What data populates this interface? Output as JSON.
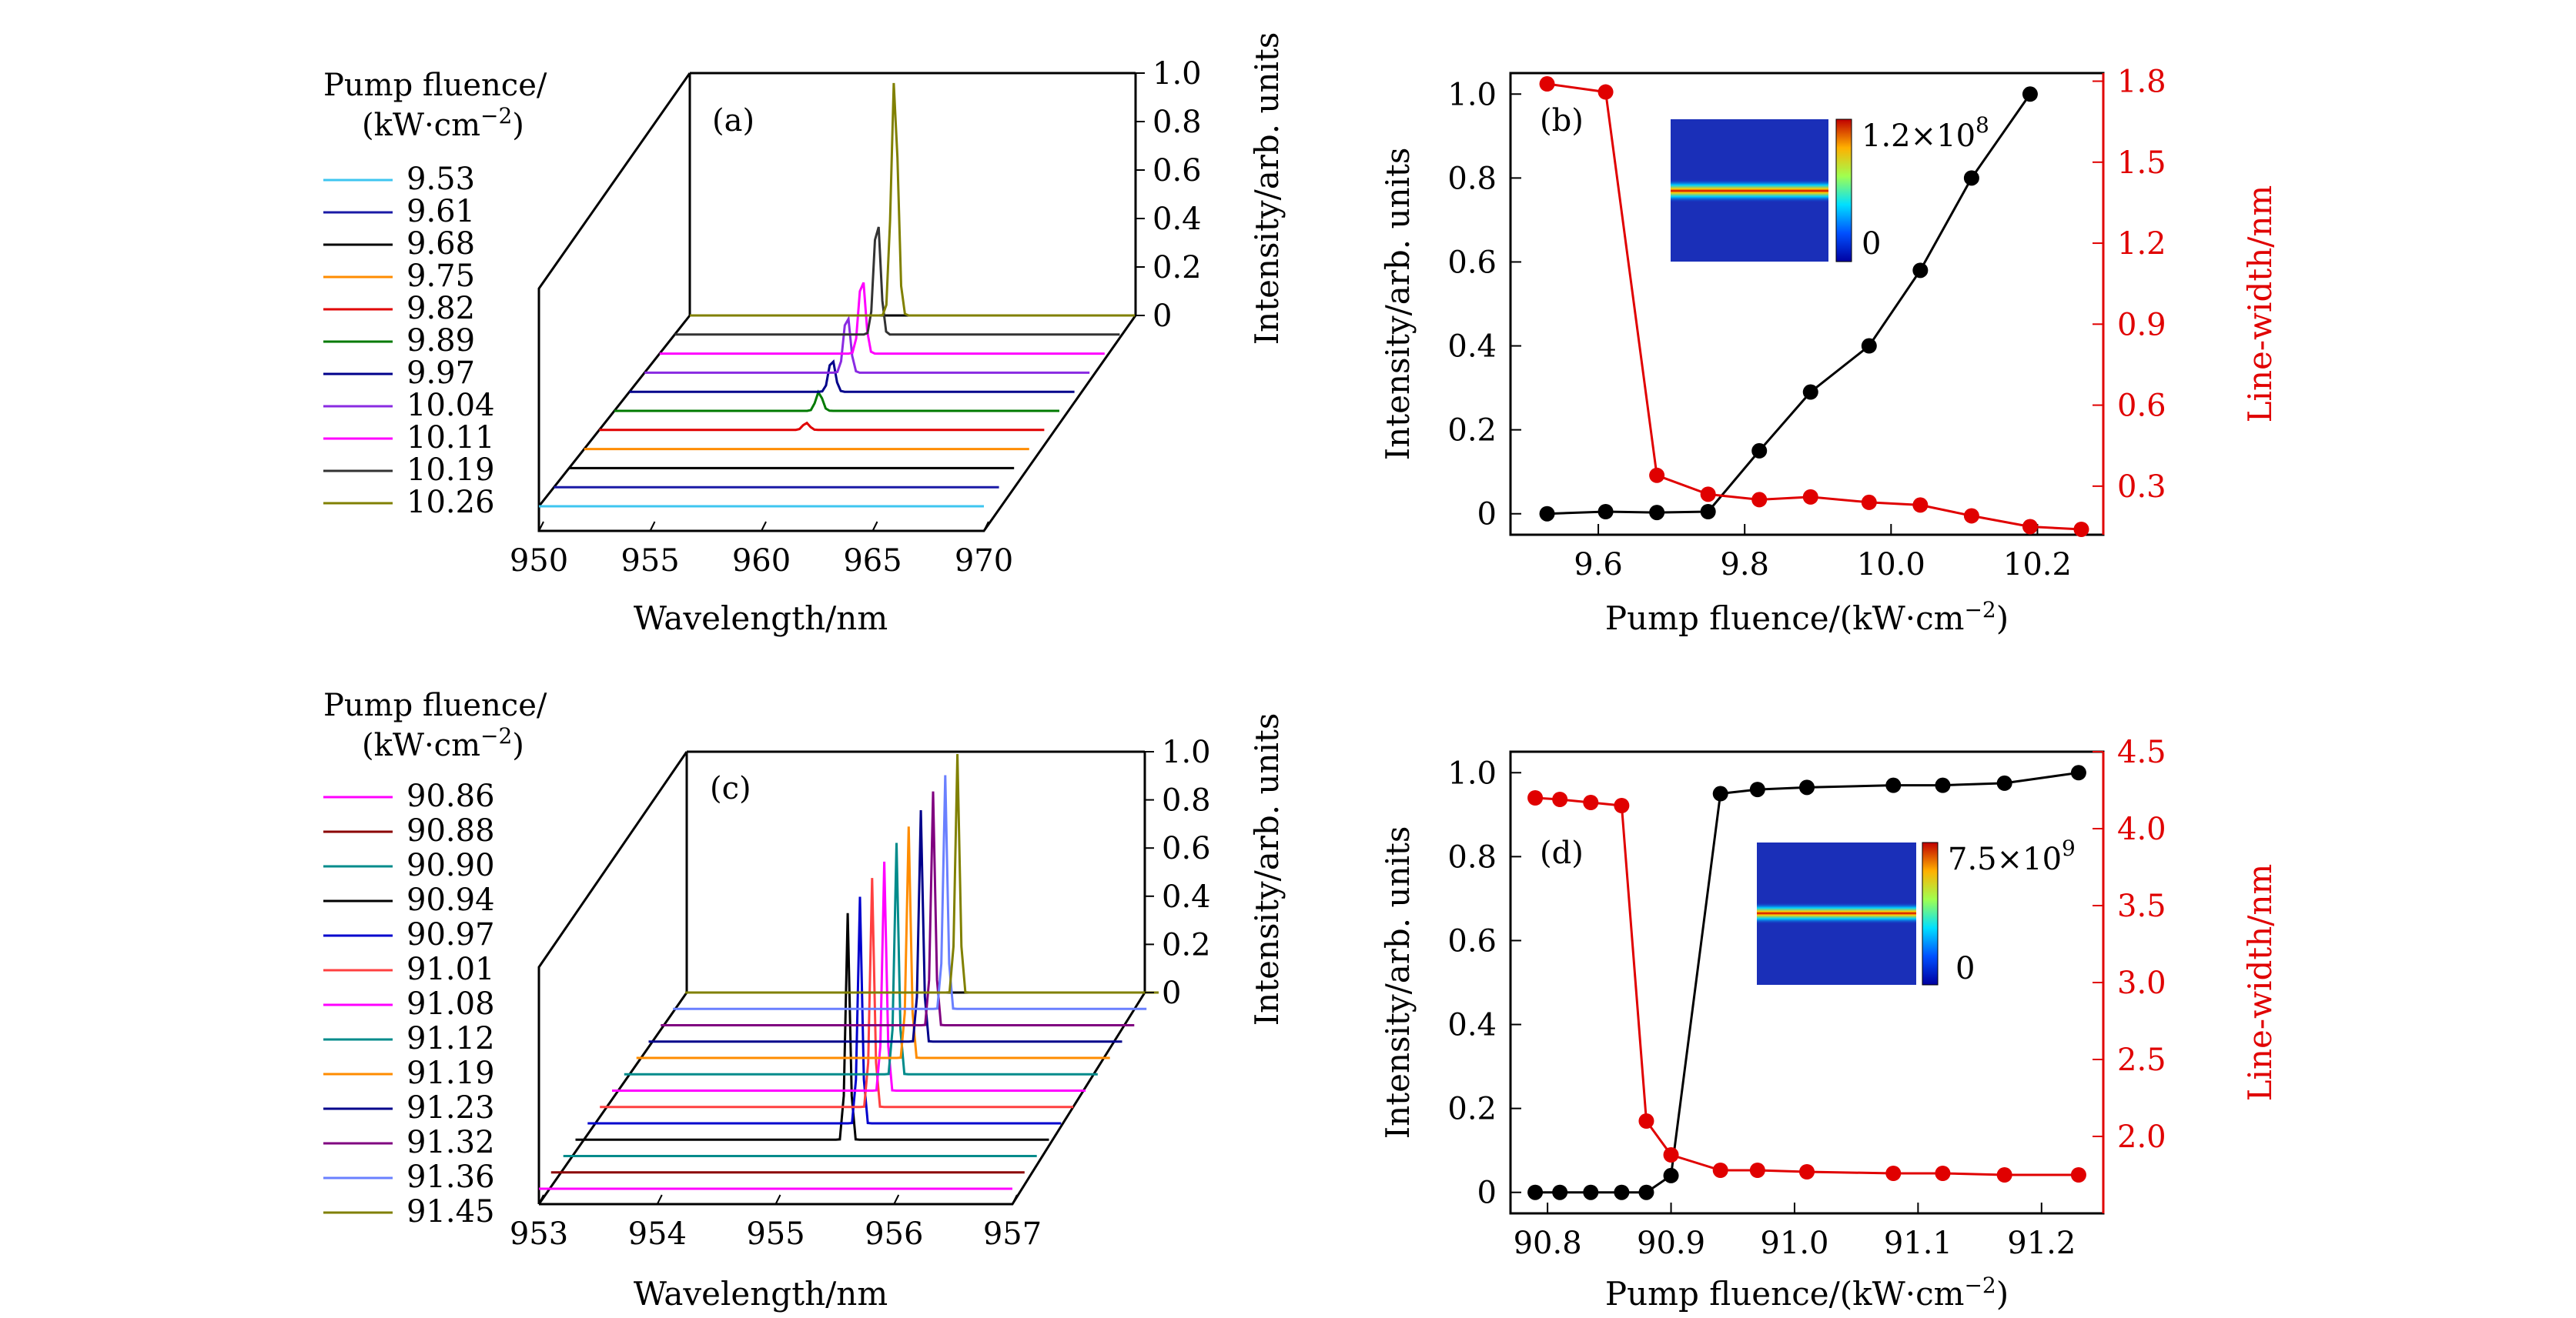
{
  "chart_data": [
    {
      "panel": "(a)",
      "type": "line",
      "subtype": "waterfall-3d",
      "xlabel": "Wavelength/nm",
      "zlabel": "Intensity/arb. units",
      "xticks": [
        950,
        955,
        960,
        965,
        970
      ],
      "zticks": [
        0,
        0.2,
        0.4,
        0.6,
        0.8,
        1.0
      ],
      "xlim": [
        950,
        970
      ],
      "zlim": [
        0,
        1.0
      ],
      "legend_title": [
        "Pump fluence/",
        "(kW·cm",
        "−2",
        ")"
      ],
      "series": [
        {
          "name": "9.53",
          "color": "#3ec6f0",
          "peak_x": 960.0,
          "peak": 0.0
        },
        {
          "name": "9.61",
          "color": "#1a1aa6",
          "peak_x": 960.0,
          "peak": 0.0
        },
        {
          "name": "9.68",
          "color": "#000000",
          "peak_x": 960.0,
          "peak": 0.0
        },
        {
          "name": "9.75",
          "color": "#ff8c00",
          "peak_x": 960.0,
          "peak": 0.0
        },
        {
          "name": "9.82",
          "color": "#e00000",
          "peak_x": 959.3,
          "peak": 0.03
        },
        {
          "name": "9.89",
          "color": "#007a00",
          "peak_x": 959.2,
          "peak": 0.08
        },
        {
          "name": "9.97",
          "color": "#00008b",
          "peak_x": 959.1,
          "peak": 0.14
        },
        {
          "name": "10.04",
          "color": "#8a2be2",
          "peak_x": 959.1,
          "peak": 0.25
        },
        {
          "name": "10.11",
          "color": "#ff00ff",
          "peak_x": 959.1,
          "peak": 0.33
        },
        {
          "name": "10.19",
          "color": "#333333",
          "peak_x": 959.1,
          "peak": 0.5
        },
        {
          "name": "10.26",
          "color": "#808000",
          "peak_x": 959.2,
          "peak": 1.0
        }
      ]
    },
    {
      "panel": "(b)",
      "type": "line",
      "xlabel": [
        "Pump fluence/(kW·cm",
        "−2",
        ")"
      ],
      "ylabel": "Intensity/arb. units",
      "y2label": "Line-width/nm",
      "xticks": [
        9.6,
        9.8,
        10.0,
        10.2
      ],
      "yticks": [
        0,
        0.2,
        0.4,
        0.6,
        0.8,
        1.0
      ],
      "y2ticks": [
        0.3,
        0.6,
        0.9,
        1.2,
        1.5,
        1.8
      ],
      "xlim": [
        9.48,
        10.29
      ],
      "ylim": [
        -0.05,
        1.05
      ],
      "y2lim": [
        0.12,
        1.83
      ],
      "x": [
        9.53,
        9.61,
        9.68,
        9.75,
        9.82,
        9.89,
        9.97,
        10.04,
        10.11,
        10.19,
        10.26
      ],
      "series": [
        {
          "axis": "left",
          "color": "#000000",
          "values": [
            0.0,
            0.005,
            0.003,
            0.005,
            0.15,
            0.29,
            0.4,
            0.58,
            0.8,
            1.0,
            null
          ]
        },
        {
          "axis": "right",
          "color": "#e00000",
          "values": [
            1.79,
            1.76,
            0.34,
            0.27,
            0.25,
            0.26,
            0.24,
            0.23,
            0.19,
            0.15,
            0.14
          ]
        }
      ],
      "inset": {
        "colorbar_max": [
          "1.2×10",
          "8"
        ],
        "colorbar_min": "0"
      }
    },
    {
      "panel": "(c)",
      "type": "line",
      "subtype": "waterfall-3d",
      "xlabel": "Wavelength/nm",
      "zlabel": "Intensity/arb. units",
      "xticks": [
        953,
        954,
        955,
        956,
        957
      ],
      "zticks": [
        0,
        0.2,
        0.4,
        0.6,
        0.8,
        1.0
      ],
      "xlim": [
        953,
        957
      ],
      "zlim": [
        0,
        1.0
      ],
      "legend_title": [
        "Pump fluence/",
        "(kW·cm",
        "−2",
        ")"
      ],
      "series": [
        {
          "name": "90.86",
          "color": "#ff00ff",
          "peak_x": 955.3,
          "peak": 0.0
        },
        {
          "name": "90.88",
          "color": "#8b0000",
          "peak_x": 955.3,
          "peak": 0.0
        },
        {
          "name": "90.90",
          "color": "#008b8b",
          "peak_x": 955.3,
          "peak": 0.0
        },
        {
          "name": "90.94",
          "color": "#000000",
          "peak_x": 955.3,
          "peak": 0.95
        },
        {
          "name": "90.97",
          "color": "#0000cd",
          "peak_x": 955.3,
          "peak": 0.95
        },
        {
          "name": "91.01",
          "color": "#ff4040",
          "peak_x": 955.3,
          "peak": 0.96
        },
        {
          "name": "91.08",
          "color": "#ff00ff",
          "peak_x": 955.3,
          "peak": 0.96
        },
        {
          "name": "91.12",
          "color": "#008b8b",
          "peak_x": 955.3,
          "peak": 0.97
        },
        {
          "name": "91.19",
          "color": "#ff8c00",
          "peak_x": 955.3,
          "peak": 0.97
        },
        {
          "name": "91.23",
          "color": "#00008b",
          "peak_x": 955.3,
          "peak": 0.97
        },
        {
          "name": "91.32",
          "color": "#800080",
          "peak_x": 955.3,
          "peak": 0.98
        },
        {
          "name": "91.36",
          "color": "#6a80ff",
          "peak_x": 955.3,
          "peak": 0.98
        },
        {
          "name": "91.45",
          "color": "#808000",
          "peak_x": 955.3,
          "peak": 1.0
        }
      ]
    },
    {
      "panel": "(d)",
      "type": "line",
      "xlabel": [
        "Pump fluence/(kW·cm",
        "−2",
        ")"
      ],
      "ylabel": "Intensity/arb. units",
      "y2label": "Line-width/nm",
      "xticks": [
        90.8,
        90.9,
        91.0,
        91.1,
        91.2
      ],
      "yticks": [
        0,
        0.2,
        0.4,
        0.6,
        0.8,
        1.0
      ],
      "y2ticks": [
        2.0,
        2.5,
        3.0,
        3.5,
        4.0,
        4.5
      ],
      "xlim": [
        90.77,
        91.25
      ],
      "ylim": [
        -0.05,
        1.05
      ],
      "y2lim": [
        1.5,
        4.5
      ],
      "x": [
        90.79,
        90.81,
        90.835,
        90.86,
        90.88,
        90.9,
        90.94,
        90.97,
        91.01,
        91.08,
        91.12,
        91.17,
        91.23
      ],
      "series": [
        {
          "axis": "left",
          "color": "#000000",
          "values": [
            0.0,
            0.0,
            0.0,
            0.0,
            0.0,
            0.04,
            0.95,
            0.96,
            0.965,
            0.97,
            0.97,
            0.975,
            1.0
          ]
        },
        {
          "axis": "right",
          "color": "#e00000",
          "values": [
            4.2,
            4.19,
            4.17,
            4.15,
            2.1,
            1.88,
            1.78,
            1.78,
            1.77,
            1.76,
            1.76,
            1.75,
            1.75
          ]
        }
      ],
      "inset": {
        "colorbar_max": [
          "7.5×10",
          "9"
        ],
        "colorbar_min": "0"
      }
    }
  ]
}
